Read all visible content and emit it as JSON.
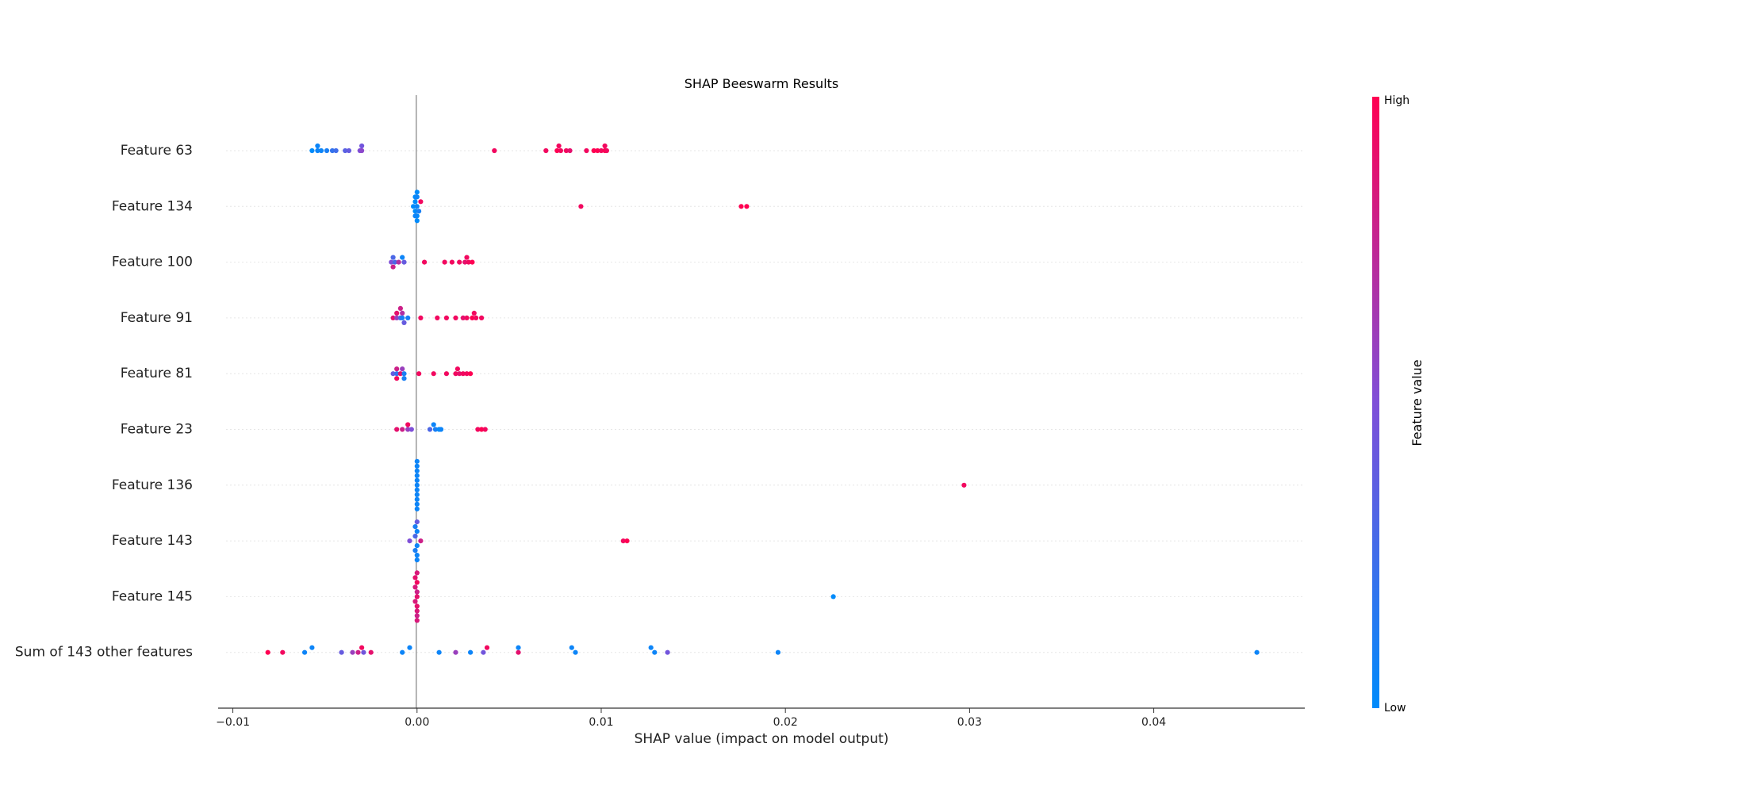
{
  "chart_data": {
    "type": "scatter",
    "subtype": "shap-beeswarm",
    "title": "SHAP Beeswarm Results",
    "xlabel": "SHAP value (impact on model output)",
    "ylabel": "",
    "xlim": [
      -0.0108,
      0.0482
    ],
    "xticks": [
      -0.01,
      0.0,
      0.01,
      0.02,
      0.03,
      0.04
    ],
    "xtick_labels": [
      "−0.01",
      "0.00",
      "0.01",
      "0.02",
      "0.03",
      "0.04"
    ],
    "grid": false,
    "zero_line": 0.0,
    "colorbar": {
      "label": "Feature value",
      "high_label": "High",
      "low_label": "Low",
      "high_color": "#ff0052",
      "mid_color": "#7f4fd8",
      "low_color": "#008bfb"
    },
    "features": [
      "Feature 63",
      "Feature 134",
      "Feature 100",
      "Feature 91",
      "Feature 81",
      "Feature 23",
      "Feature 136",
      "Feature 143",
      "Feature 145",
      "Sum of 143 other features"
    ],
    "points": [
      [
        [
          -0.0057,
          0.0,
          0.0
        ],
        [
          -0.0054,
          0.0,
          0.05
        ],
        [
          -0.0054,
          1.0,
          0.05
        ],
        [
          -0.0052,
          0.0,
          0.05
        ],
        [
          -0.0049,
          0.0,
          0.1
        ],
        [
          -0.0046,
          0.0,
          0.2
        ],
        [
          -0.0044,
          0.0,
          0.25
        ],
        [
          -0.0039,
          0.0,
          0.35
        ],
        [
          -0.0037,
          0.0,
          0.4
        ],
        [
          -0.0031,
          0.0,
          0.5
        ],
        [
          -0.003,
          1.0,
          0.45
        ],
        [
          -0.003,
          0.0,
          0.55
        ],
        [
          0.0042,
          0.0,
          0.95
        ],
        [
          0.007,
          0.0,
          0.95
        ],
        [
          0.0076,
          0.0,
          1.0
        ],
        [
          0.0077,
          1.0,
          0.95
        ],
        [
          0.0078,
          0.0,
          0.95
        ],
        [
          0.0081,
          0.0,
          0.95
        ],
        [
          0.0083,
          0.0,
          0.9
        ],
        [
          0.0092,
          0.0,
          0.95
        ],
        [
          0.0096,
          0.0,
          1.0
        ],
        [
          0.0098,
          0.0,
          1.0
        ],
        [
          0.01,
          0.0,
          0.95
        ],
        [
          0.0102,
          0.0,
          1.0
        ],
        [
          0.0102,
          1.0,
          0.95
        ],
        [
          0.0103,
          0.0,
          0.95
        ]
      ],
      [
        [
          0.0,
          3.0,
          0.0
        ],
        [
          -0.0001,
          2.0,
          0.0
        ],
        [
          0.0,
          2.0,
          0.05
        ],
        [
          0.0002,
          1.0,
          0.95
        ],
        [
          -0.0001,
          1.0,
          0.0
        ],
        [
          -0.0002,
          0.0,
          0.0
        ],
        [
          0.0,
          0.0,
          0.05
        ],
        [
          -0.0001,
          -1.0,
          0.0
        ],
        [
          0.0001,
          -1.0,
          0.1
        ],
        [
          0.0,
          -2.0,
          0.0
        ],
        [
          -0.0001,
          -2.0,
          0.05
        ],
        [
          0.0,
          -3.0,
          0.0
        ],
        [
          0.0089,
          0.0,
          0.95
        ],
        [
          0.0176,
          0.0,
          1.0
        ],
        [
          0.0179,
          0.0,
          1.0
        ]
      ],
      [
        [
          -0.0013,
          1.0,
          0.3
        ],
        [
          -0.0008,
          1.0,
          0.05
        ],
        [
          -0.0014,
          0.0,
          0.5
        ],
        [
          -0.0012,
          0.0,
          0.3
        ],
        [
          -0.001,
          0.0,
          0.7
        ],
        [
          -0.0007,
          0.0,
          0.4
        ],
        [
          -0.0013,
          -1.0,
          0.8
        ],
        [
          0.0004,
          0.0,
          0.95
        ],
        [
          0.0015,
          0.0,
          0.95
        ],
        [
          0.0019,
          0.0,
          0.95
        ],
        [
          0.0023,
          0.0,
          0.95
        ],
        [
          0.0026,
          0.0,
          0.9
        ],
        [
          0.0028,
          0.0,
          0.95
        ],
        [
          0.003,
          0.0,
          1.0
        ],
        [
          0.0027,
          1.0,
          0.95
        ]
      ],
      [
        [
          -0.0009,
          2.0,
          0.8
        ],
        [
          -0.0011,
          1.0,
          0.9
        ],
        [
          -0.0008,
          1.0,
          0.7
        ],
        [
          -0.0013,
          0.0,
          0.9
        ],
        [
          -0.0011,
          0.0,
          0.6
        ],
        [
          -0.0009,
          0.0,
          0.3
        ],
        [
          -0.0008,
          0.0,
          0.1
        ],
        [
          -0.0005,
          0.0,
          0.1
        ],
        [
          -0.0007,
          -1.0,
          0.4
        ],
        [
          0.0002,
          0.0,
          0.95
        ],
        [
          0.0011,
          0.0,
          0.95
        ],
        [
          0.0016,
          0.0,
          0.95
        ],
        [
          0.0021,
          0.0,
          0.95
        ],
        [
          0.0025,
          0.0,
          0.9
        ],
        [
          0.0027,
          0.0,
          0.95
        ],
        [
          0.003,
          0.0,
          1.0
        ],
        [
          0.0032,
          0.0,
          0.95
        ],
        [
          0.0035,
          0.0,
          0.95
        ],
        [
          0.0031,
          1.0,
          0.95
        ]
      ],
      [
        [
          -0.0011,
          1.0,
          0.8
        ],
        [
          -0.0008,
          1.0,
          0.6
        ],
        [
          -0.0013,
          0.0,
          0.4
        ],
        [
          -0.0011,
          0.0,
          0.2
        ],
        [
          -0.0009,
          0.0,
          0.9
        ],
        [
          -0.0007,
          0.0,
          0.1
        ],
        [
          -0.0011,
          -1.0,
          0.95
        ],
        [
          -0.0007,
          -1.0,
          0.1
        ],
        [
          0.0001,
          0.0,
          0.95
        ],
        [
          0.0009,
          0.0,
          0.95
        ],
        [
          0.0016,
          0.0,
          0.95
        ],
        [
          0.0021,
          0.0,
          0.95
        ],
        [
          0.0023,
          0.0,
          0.9
        ],
        [
          0.0025,
          0.0,
          0.95
        ],
        [
          0.0027,
          0.0,
          0.95
        ],
        [
          0.0029,
          0.0,
          1.0
        ],
        [
          0.0022,
          1.0,
          0.95
        ]
      ],
      [
        [
          -0.0011,
          0.0,
          0.9
        ],
        [
          -0.0008,
          0.0,
          0.8
        ],
        [
          -0.0005,
          0.0,
          0.6
        ],
        [
          -0.0003,
          0.0,
          0.5
        ],
        [
          -0.0005,
          1.0,
          0.95
        ],
        [
          0.0007,
          0.0,
          0.3
        ],
        [
          0.0009,
          1.0,
          0.05
        ],
        [
          0.001,
          0.0,
          0.1
        ],
        [
          0.0012,
          0.0,
          0.0
        ],
        [
          0.0013,
          0.0,
          0.05
        ],
        [
          0.0033,
          0.0,
          0.95
        ],
        [
          0.0035,
          0.0,
          1.0
        ],
        [
          0.0037,
          0.0,
          0.95
        ]
      ],
      [
        [
          0.0,
          5.0,
          0.05
        ],
        [
          0.0,
          4.0,
          0.05
        ],
        [
          0.0,
          3.0,
          0.05
        ],
        [
          0.0,
          2.0,
          0.05
        ],
        [
          0.0,
          1.0,
          0.05
        ],
        [
          0.0,
          0.0,
          0.05
        ],
        [
          0.0,
          -1.0,
          0.05
        ],
        [
          0.0,
          -2.0,
          0.05
        ],
        [
          0.0,
          -3.0,
          0.05
        ],
        [
          0.0,
          -4.0,
          0.05
        ],
        [
          0.0,
          -5.0,
          0.05
        ],
        [
          0.0297,
          0.0,
          0.95
        ]
      ],
      [
        [
          0.0,
          4.0,
          0.4
        ],
        [
          -0.0001,
          3.0,
          0.1
        ],
        [
          0.0,
          2.0,
          0.05
        ],
        [
          -0.0001,
          1.0,
          0.3
        ],
        [
          -0.0004,
          0.0,
          0.5
        ],
        [
          0.0002,
          0.0,
          0.8
        ],
        [
          0.0,
          -1.0,
          0.05
        ],
        [
          -0.0001,
          -2.0,
          0.1
        ],
        [
          0.0,
          -3.0,
          0.05
        ],
        [
          0.0,
          -4.0,
          0.05
        ],
        [
          0.0112,
          0.0,
          0.95
        ],
        [
          0.0114,
          0.0,
          1.0
        ]
      ],
      [
        [
          0.0,
          5.0,
          0.85
        ],
        [
          -0.0001,
          4.0,
          0.9
        ],
        [
          0.0,
          3.0,
          0.95
        ],
        [
          -0.0001,
          2.0,
          0.85
        ],
        [
          0.0,
          1.0,
          0.8
        ],
        [
          0.0,
          0.0,
          0.9
        ],
        [
          -0.0001,
          -1.0,
          0.85
        ],
        [
          0.0,
          -2.0,
          0.9
        ],
        [
          0.0,
          -3.0,
          0.85
        ],
        [
          0.0,
          -4.0,
          0.8
        ],
        [
          0.0,
          -5.0,
          0.85
        ],
        [
          0.0226,
          0.0,
          0.0
        ]
      ],
      [
        [
          -0.0081,
          0.0,
          1.0
        ],
        [
          -0.0073,
          0.0,
          0.95
        ],
        [
          -0.0061,
          0.0,
          0.05
        ],
        [
          -0.0057,
          1.0,
          0.05
        ],
        [
          -0.0041,
          0.0,
          0.4
        ],
        [
          -0.0035,
          0.0,
          0.6
        ],
        [
          -0.0032,
          0.0,
          0.8
        ],
        [
          -0.0029,
          0.0,
          0.45
        ],
        [
          -0.0025,
          0.0,
          0.9
        ],
        [
          -0.003,
          1.0,
          0.95
        ],
        [
          -0.0008,
          0.0,
          0.05
        ],
        [
          -0.0004,
          1.0,
          0.05
        ],
        [
          0.0012,
          0.0,
          0.05
        ],
        [
          0.0021,
          0.0,
          0.6
        ],
        [
          0.0029,
          0.0,
          0.05
        ],
        [
          0.0036,
          0.0,
          0.45
        ],
        [
          0.0038,
          1.0,
          0.95
        ],
        [
          0.0055,
          0.0,
          0.9
        ],
        [
          0.0055,
          1.0,
          0.05
        ],
        [
          0.0084,
          1.0,
          0.05
        ],
        [
          0.0086,
          0.0,
          0.05
        ],
        [
          0.0127,
          1.0,
          0.05
        ],
        [
          0.0129,
          0.0,
          0.05
        ],
        [
          0.0136,
          0.0,
          0.45
        ],
        [
          0.0196,
          0.0,
          0.05
        ],
        [
          0.0456,
          0.0,
          0.05
        ]
      ]
    ]
  }
}
